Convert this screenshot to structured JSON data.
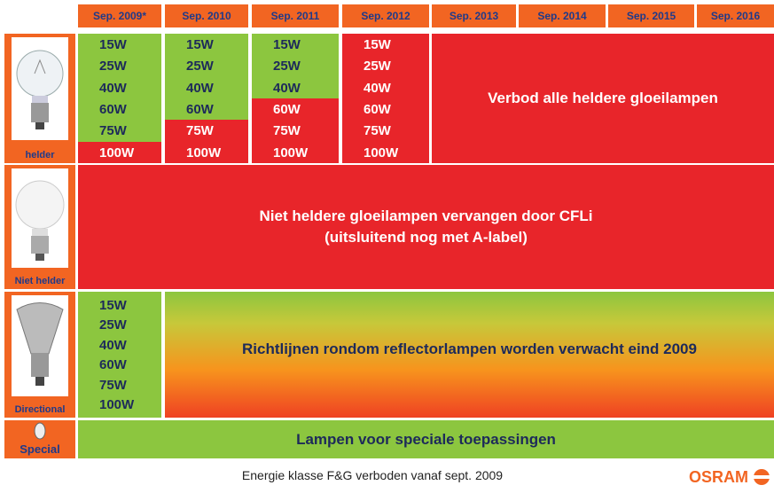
{
  "columns": [
    "Sep. 2009*",
    "Sep. 2010",
    "Sep. 2011",
    "Sep. 2012",
    "Sep. 2013",
    "Sep. 2014",
    "Sep. 2015",
    "Sep. 2016"
  ],
  "rows": {
    "clear": {
      "label": "helder",
      "columns": [
        [
          {
            "text": "15W",
            "color": "#8cc63f"
          },
          {
            "text": "25W",
            "color": "#8cc63f"
          },
          {
            "text": "40W",
            "color": "#8cc63f"
          },
          {
            "text": "60W",
            "color": "#8cc63f"
          },
          {
            "text": "75W",
            "color": "#8cc63f"
          },
          {
            "text": "100W",
            "color": "#e8252a"
          }
        ],
        [
          {
            "text": "15W",
            "color": "#8cc63f"
          },
          {
            "text": "25W",
            "color": "#8cc63f"
          },
          {
            "text": "40W",
            "color": "#8cc63f"
          },
          {
            "text": "60W",
            "color": "#8cc63f"
          },
          {
            "text": "75W",
            "color": "#e8252a"
          },
          {
            "text": "100W",
            "color": "#e8252a"
          }
        ],
        [
          {
            "text": "15W",
            "color": "#8cc63f"
          },
          {
            "text": "25W",
            "color": "#8cc63f"
          },
          {
            "text": "40W",
            "color": "#8cc63f"
          },
          {
            "text": "60W",
            "color": "#e8252a"
          },
          {
            "text": "75W",
            "color": "#e8252a"
          },
          {
            "text": "100W",
            "color": "#e8252a"
          }
        ],
        [
          {
            "text": "15W",
            "color": "#e8252a"
          },
          {
            "text": "25W",
            "color": "#e8252a"
          },
          {
            "text": "40W",
            "color": "#e8252a"
          },
          {
            "text": "60W",
            "color": "#e8252a"
          },
          {
            "text": "75W",
            "color": "#e8252a"
          },
          {
            "text": "100W",
            "color": "#e8252a"
          }
        ]
      ],
      "banner": "Verbod alle heldere gloeilampen"
    },
    "frosted": {
      "label": "Niet helder",
      "banner": [
        "Niet heldere gloeilampen vervangen door CFLi",
        "(uitsluitend nog met A-label)"
      ]
    },
    "directional": {
      "label": "Directional",
      "watts": [
        "15W",
        "25W",
        "40W",
        "60W",
        "75W",
        "100W"
      ],
      "banner": "Richtlijnen rondom reflectorlampen worden verwacht eind 2009"
    },
    "special": {
      "label": "Special",
      "banner": "Lampen voor speciale toepassingen"
    }
  },
  "footer": "Energie klasse F&G verboden vanaf sept. 2009",
  "logo": "OSRAM"
}
